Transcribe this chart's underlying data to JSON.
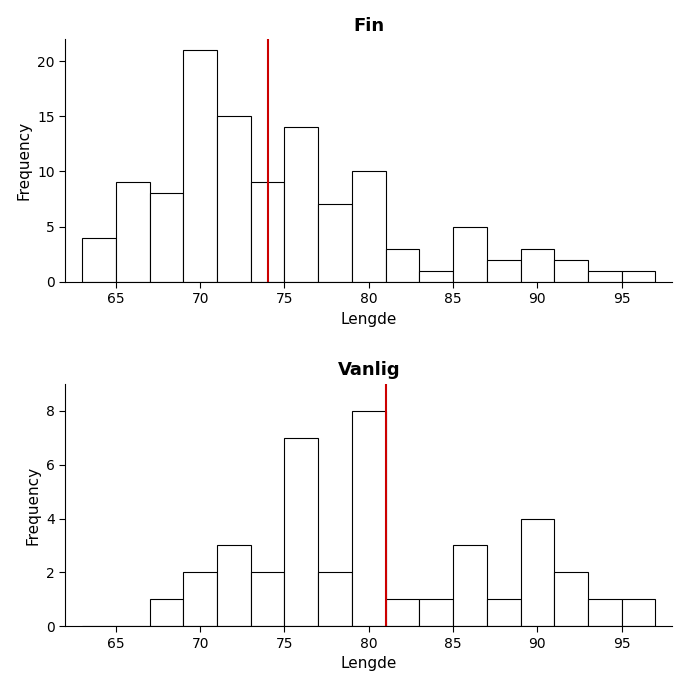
{
  "fin": {
    "title": "Fin",
    "xlabel": "Lengde",
    "ylabel": "Frequency",
    "bin_edges": [
      63,
      65,
      67,
      69,
      71,
      73,
      75,
      77,
      79,
      81,
      83,
      85,
      87,
      89,
      91,
      93,
      95,
      97
    ],
    "counts": [
      4,
      9,
      8,
      21,
      15,
      9,
      14,
      7,
      10,
      3,
      1,
      5,
      2,
      3,
      2,
      1,
      1
    ],
    "vline": 74,
    "ylim": [
      0,
      22
    ],
    "yticks": [
      0,
      5,
      10,
      15,
      20
    ],
    "xlim": [
      62,
      98
    ],
    "xticks": [
      65,
      70,
      75,
      80,
      85,
      90,
      95
    ]
  },
  "vanlig": {
    "title": "Vanlig",
    "xlabel": "Lengde",
    "ylabel": "Frequency",
    "bin_edges": [
      63,
      65,
      67,
      69,
      71,
      73,
      75,
      77,
      79,
      81,
      83,
      85,
      87,
      89,
      91,
      93,
      95,
      97
    ],
    "counts": [
      0,
      0,
      1,
      2,
      3,
      2,
      7,
      2,
      8,
      1,
      1,
      3,
      1,
      4,
      2,
      1,
      1
    ],
    "vline": 81,
    "ylim": [
      0,
      9
    ],
    "yticks": [
      0,
      2,
      4,
      6,
      8
    ],
    "xlim": [
      62,
      98
    ],
    "xticks": [
      65,
      70,
      75,
      80,
      85,
      90,
      95
    ]
  },
  "bar_facecolor": "#ffffff",
  "bar_edgecolor": "#000000",
  "vline_color": "#cc0000",
  "title_fontsize": 13,
  "label_fontsize": 11,
  "tick_fontsize": 10,
  "text_color": "#000000",
  "background_color": "#ffffff"
}
